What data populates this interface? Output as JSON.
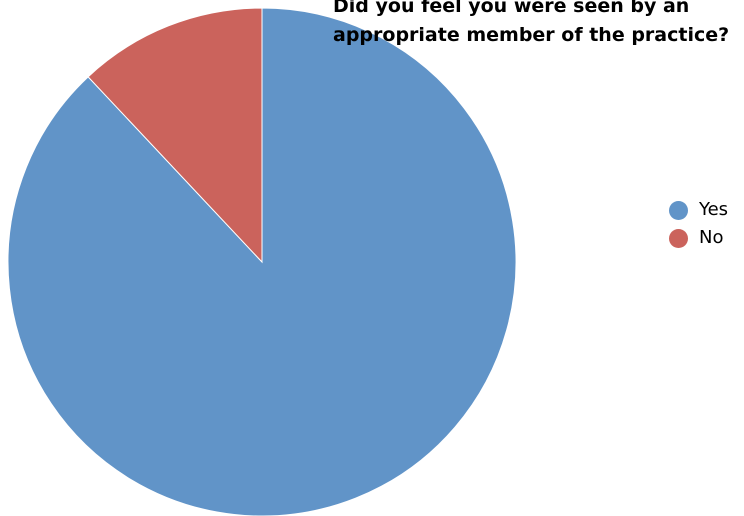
{
  "chart_data": {
    "type": "pie",
    "title": "Did you feel you were seen by an appropriate member of the practice?",
    "categories": [
      "Yes",
      "No"
    ],
    "values": [
      88,
      12
    ],
    "colors": [
      "#6194c8",
      "#cb635c"
    ],
    "legend_position": "right",
    "start_angle_deg": 0,
    "direction": "clockwise"
  }
}
